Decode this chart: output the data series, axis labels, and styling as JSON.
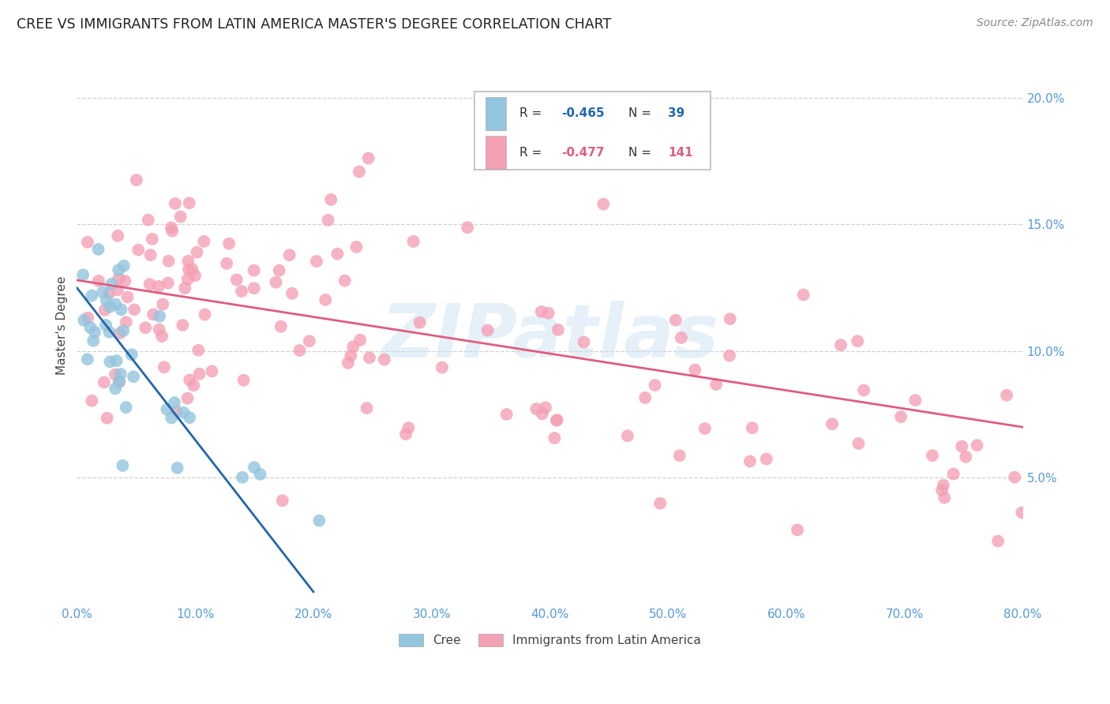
{
  "title": "CREE VS IMMIGRANTS FROM LATIN AMERICA MASTER'S DEGREE CORRELATION CHART",
  "source": "Source: ZipAtlas.com",
  "ylabel": "Master's Degree",
  "xlabel_ticks": [
    "0.0%",
    "10.0%",
    "20.0%",
    "30.0%",
    "40.0%",
    "50.0%",
    "60.0%",
    "70.0%",
    "80.0%"
  ],
  "xlabel_vals": [
    0,
    10,
    20,
    30,
    40,
    50,
    60,
    70,
    80
  ],
  "ylabel_ticks": [
    "5.0%",
    "10.0%",
    "15.0%",
    "20.0%"
  ],
  "ylabel_vals": [
    5,
    10,
    15,
    20
  ],
  "xlim": [
    0,
    80
  ],
  "ylim": [
    0,
    22
  ],
  "cree_R": -0.465,
  "cree_N": 39,
  "latin_R": -0.477,
  "latin_N": 141,
  "cree_color": "#92c5de",
  "cree_line_color": "#2166ac",
  "latin_color": "#f4a0b5",
  "latin_line_color": "#e05c80",
  "watermark_color": "#c8dff0",
  "background_color": "#ffffff",
  "grid_color": "#d0d0d0",
  "axis_tick_color": "#5599dd",
  "legend_R_color": "#333333",
  "legend_val_cree_color": "#2166ac",
  "legend_val_latin_color": "#e05c80",
  "cree_line_x": [
    0,
    20
  ],
  "cree_line_y": [
    12.5,
    0.5
  ],
  "latin_line_x": [
    0,
    80
  ],
  "latin_line_y": [
    12.8,
    7.0
  ]
}
